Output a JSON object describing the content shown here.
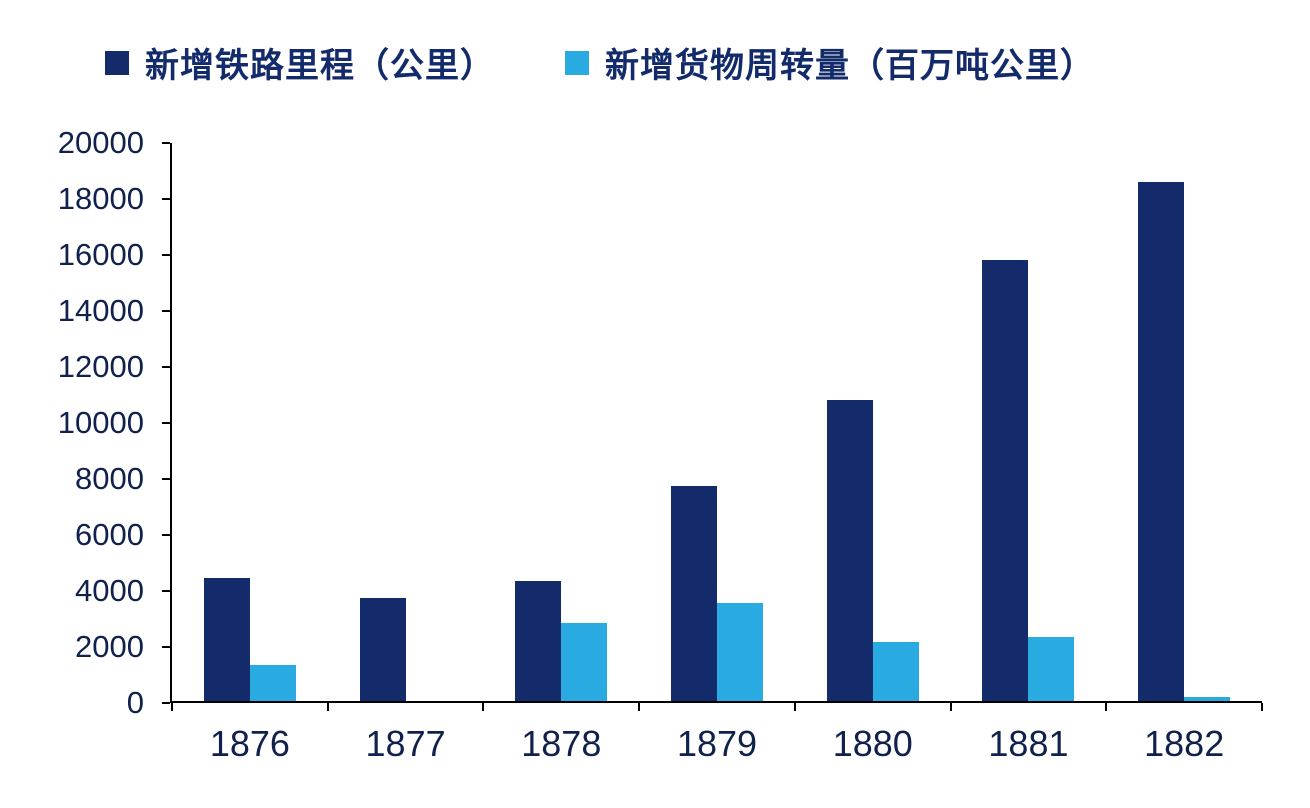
{
  "chart_data": {
    "type": "bar",
    "title": "",
    "xlabel": "",
    "ylabel": "",
    "categories": [
      "1876",
      "1877",
      "1878",
      "1879",
      "1880",
      "1881",
      "1882"
    ],
    "series": [
      {
        "key": "rail-mileage",
        "name": "新增铁路里程（公里）",
        "color": "#132a6b",
        "values": [
          4400,
          3700,
          4300,
          7700,
          10800,
          15800,
          18600
        ]
      },
      {
        "key": "freight-turnover",
        "name": "新增货物周转量（百万吨公里）",
        "color": "#29abe2",
        "values": [
          1300,
          0,
          2800,
          3500,
          2100,
          2300,
          150
        ]
      }
    ],
    "ylim": [
      0,
      20000
    ],
    "ytick_interval": 2000,
    "ytick_labels": [
      "0",
      "2000",
      "4000",
      "6000",
      "8000",
      "10000",
      "12000",
      "14000",
      "16000",
      "18000",
      "20000"
    ],
    "legend_position": "top",
    "grid": false,
    "background_color": "#ffffff",
    "axis_color": "#000000",
    "text_color": "#10214d"
  }
}
